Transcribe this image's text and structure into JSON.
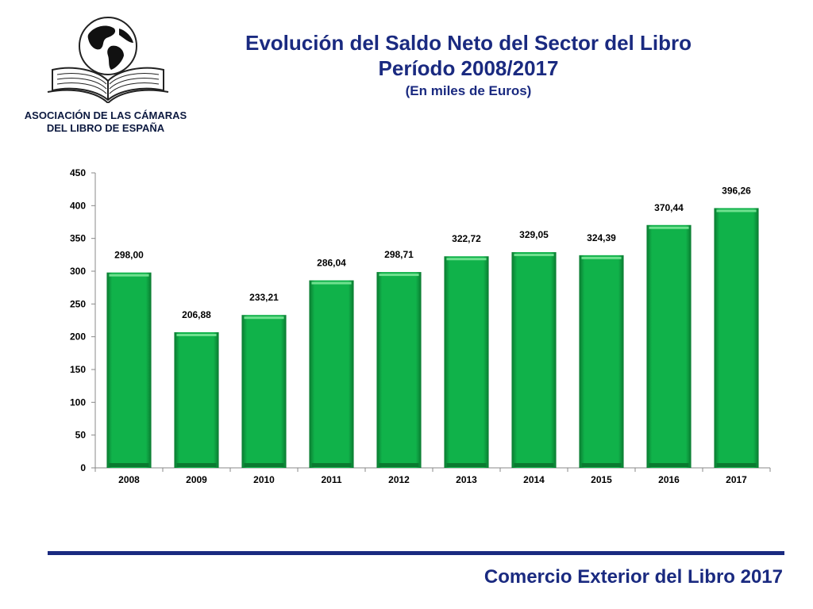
{
  "header": {
    "association_line1": "ASOCIACIÓN DE LAS CÁMARAS",
    "association_line2": "DEL LIBRO DE ESPAÑA",
    "title_line1": "Evolución del Saldo Neto del Sector del Libro",
    "title_line2": "Período 2008/2017",
    "title_line3": "(En miles de Euros)"
  },
  "footer": {
    "text": "Comercio Exterior del Libro 2017"
  },
  "colors": {
    "bar": "#10b24a",
    "bar_dark": "#0a7a30",
    "title": "#1a2a80",
    "rule": "#1a2a80"
  },
  "chart_data": {
    "type": "bar",
    "categories": [
      "2008",
      "2009",
      "2010",
      "2011",
      "2012",
      "2013",
      "2014",
      "2015",
      "2016",
      "2017"
    ],
    "values": [
      298.0,
      206.88,
      233.21,
      286.04,
      298.71,
      322.72,
      329.05,
      324.39,
      370.44,
      396.26
    ],
    "data_labels": [
      "298,00",
      "206,88",
      "233,21",
      "286,04",
      "298,71",
      "322,72",
      "329,05",
      "324,39",
      "370,44",
      "396,26"
    ],
    "ylim": [
      0,
      450
    ],
    "yticks": [
      0,
      50,
      100,
      150,
      200,
      250,
      300,
      350,
      400,
      450
    ],
    "grid": false,
    "legend": "none"
  }
}
